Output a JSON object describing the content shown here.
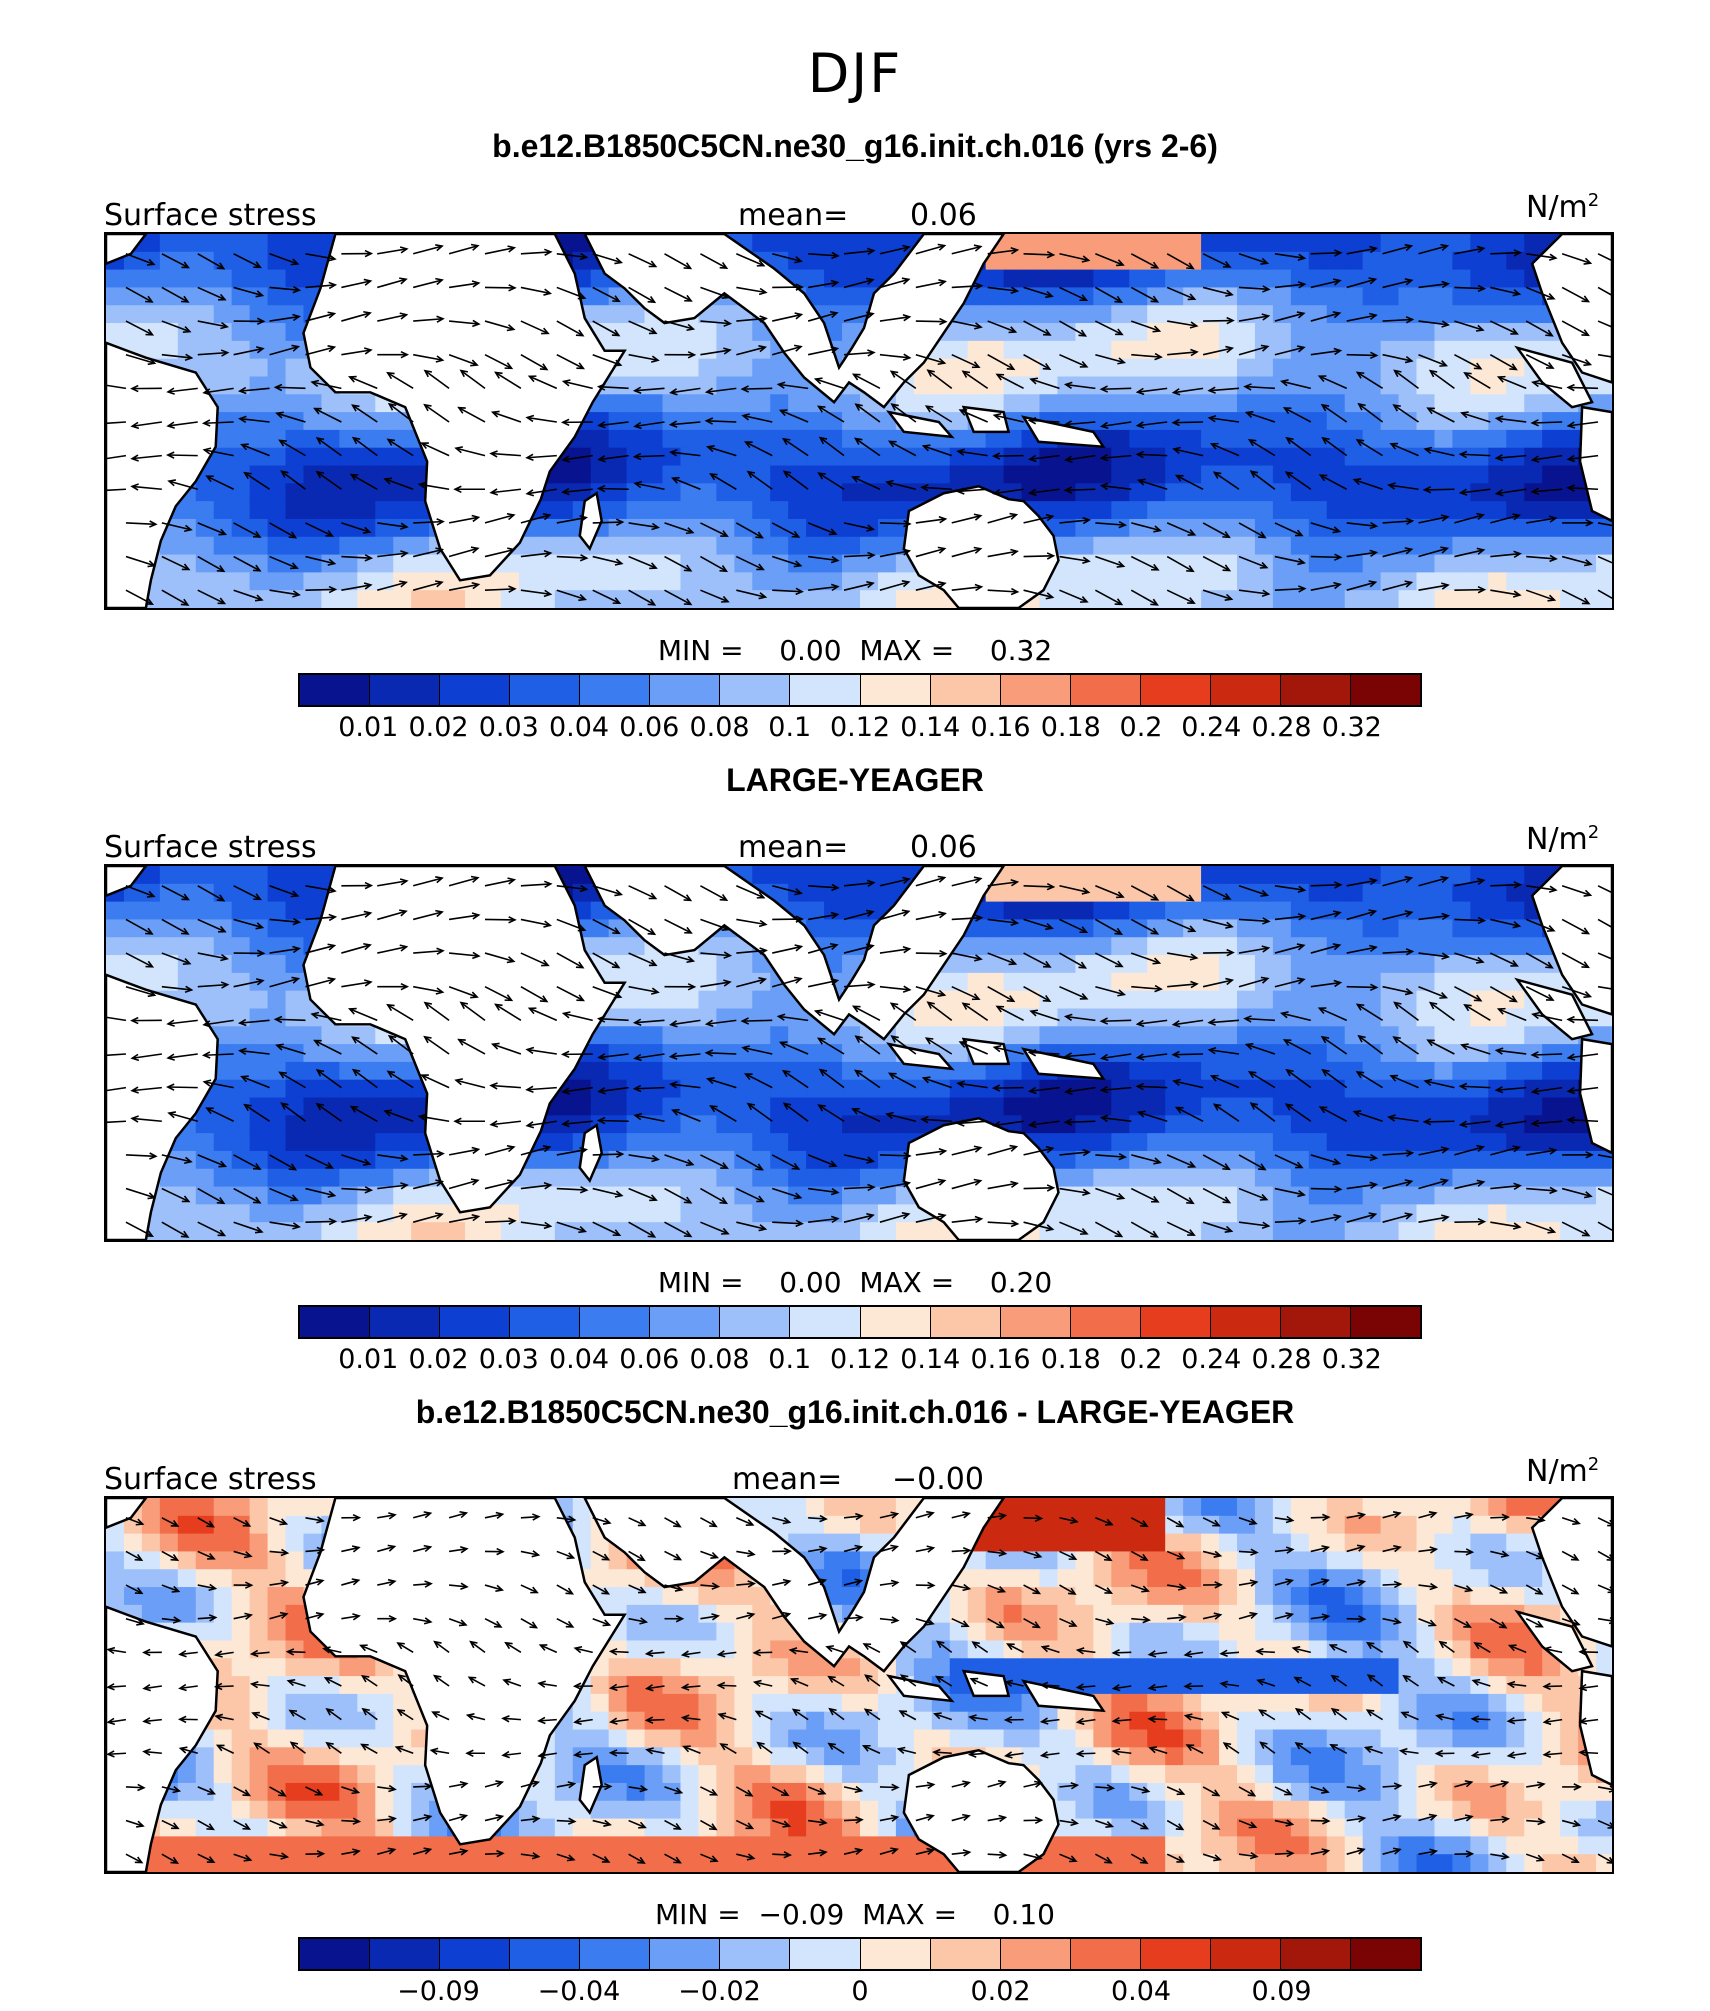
{
  "title": "DJF",
  "units_label": "N/m",
  "units_sup": "2",
  "variable_label": "Surface stress",
  "palette": [
    "#08138f",
    "#0a29b3",
    "#0d3fd3",
    "#1f5fe6",
    "#3b7cf0",
    "#6b9ef6",
    "#9ec0fa",
    "#d2e5fc",
    "#fde8d6",
    "#fcc6a9",
    "#f89c7a",
    "#f26e4b",
    "#e63d1f",
    "#cc2a10",
    "#a3160a",
    "#7a0404"
  ],
  "land_color": "#ffffff",
  "panels": [
    {
      "title": "b.e12.B1850C5CN.ne30_g16.init.ch.016 (yrs 2-6)",
      "mean_label": "mean=",
      "mean_value": "0.06",
      "min_label": "MIN =",
      "min_value": "0.00",
      "max_label": "MAX =",
      "max_value": "0.32",
      "colorbar_ticks": [
        "0.01",
        "0.02",
        "0.03",
        "0.04",
        "0.06",
        "0.08",
        "0.1",
        "0.12",
        "0.14",
        "0.16",
        "0.18",
        "0.2",
        "0.24",
        "0.28",
        "0.32"
      ]
    },
    {
      "title": "LARGE-YEAGER",
      "mean_label": "mean=",
      "mean_value": "0.06",
      "min_label": "MIN =",
      "min_value": "0.00",
      "max_label": "MAX =",
      "max_value": "0.20",
      "colorbar_ticks": [
        "0.01",
        "0.02",
        "0.03",
        "0.04",
        "0.06",
        "0.08",
        "0.1",
        "0.12",
        "0.14",
        "0.16",
        "0.18",
        "0.2",
        "0.24",
        "0.28",
        "0.32"
      ]
    },
    {
      "title": "b.e12.B1850C5CN.ne30_g16.init.ch.016 - LARGE-YEAGER",
      "mean_label": "mean=",
      "mean_value": "−0.00",
      "min_label": "MIN =",
      "min_value": "−0.09",
      "max_label": "MAX =",
      "max_value": "0.10",
      "colorbar_ticks": [
        "",
        "−0.09",
        "",
        "−0.04",
        "",
        "−0.02",
        "",
        "0",
        "",
        "0.02",
        "",
        "0.04",
        "",
        "0.09",
        ""
      ]
    }
  ]
}
